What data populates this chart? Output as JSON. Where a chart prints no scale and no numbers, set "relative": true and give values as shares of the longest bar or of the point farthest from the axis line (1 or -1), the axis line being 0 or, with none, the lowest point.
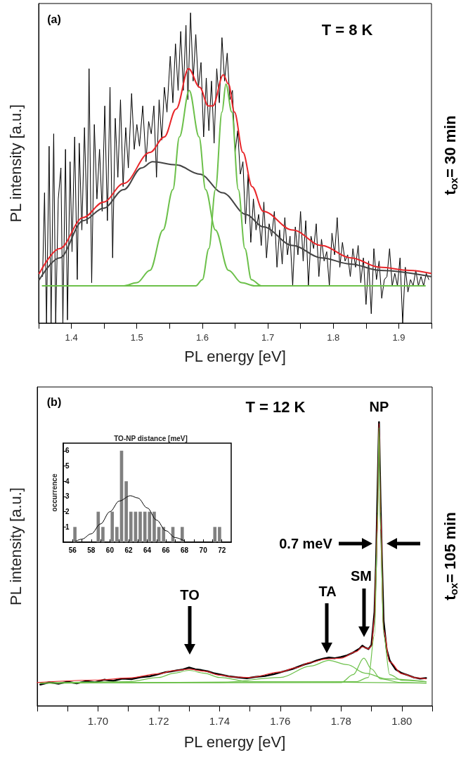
{
  "chart_data": [
    {
      "type": "line",
      "relative": true,
      "xlabel": "PL energy [eV]",
      "ylabel": "PL intensity [a.u.]",
      "xlim": [
        1.35,
        1.95
      ],
      "xticks": [
        {
          "value": 1.35,
          "label": null
        },
        1.4,
        {
          "value": 1.45,
          "label": null
        },
        1.5,
        {
          "value": 1.55,
          "label": null
        },
        1.6,
        {
          "value": 1.65,
          "label": null
        },
        1.7,
        {
          "value": 1.75,
          "label": null
        },
        1.8,
        {
          "value": 1.85,
          "label": null
        },
        1.9,
        {
          "value": 1.95,
          "label": null
        }
      ],
      "annotations": [
        "(a)",
        "T = 8 K",
        "t$_{ox}$= 30 min"
      ],
      "series": [
        {
          "color": "#000000",
          "x": [
            1.356,
            1.359,
            1.362,
            1.366,
            1.369,
            1.373,
            1.376,
            1.38,
            1.384,
            1.387,
            1.391,
            1.394,
            1.398,
            1.401,
            1.405,
            1.409,
            1.412,
            1.416,
            1.42,
            1.424,
            1.427,
            1.431,
            1.435,
            1.439,
            1.443,
            1.447,
            1.451,
            1.455,
            1.459,
            1.463,
            1.467,
            1.471,
            1.475,
            1.479,
            1.483,
            1.487,
            1.492,
            1.496,
            1.5,
            1.504,
            1.509,
            1.514,
            1.518,
            1.522,
            1.526,
            1.53,
            1.534,
            1.538,
            1.542,
            1.546,
            1.551,
            1.555,
            1.559,
            1.563,
            1.567,
            1.571,
            1.575,
            1.578,
            1.582,
            1.586,
            1.59,
            1.594,
            1.598,
            1.602,
            1.606,
            1.61,
            1.614,
            1.618,
            1.622,
            1.626,
            1.63,
            1.634,
            1.638,
            1.642,
            1.646,
            1.65,
            1.654,
            1.658,
            1.662,
            1.666,
            1.67,
            1.674,
            1.678,
            1.682,
            1.686,
            1.69,
            1.694,
            1.698,
            1.702,
            1.706,
            1.71,
            1.714,
            1.718,
            1.722,
            1.726,
            1.73,
            1.734,
            1.738,
            1.742,
            1.746,
            1.75,
            1.754,
            1.758,
            1.762,
            1.766,
            1.77,
            1.774,
            1.778,
            1.782,
            1.786,
            1.79,
            1.794,
            1.798,
            1.802,
            1.806,
            1.81,
            1.814,
            1.818,
            1.822,
            1.826,
            1.83,
            1.834,
            1.838,
            1.842,
            1.846,
            1.85,
            1.854,
            1.858,
            1.862,
            1.866,
            1.87,
            1.874,
            1.878,
            1.882,
            1.886,
            1.89,
            1.894,
            1.898,
            1.902,
            1.906,
            1.91,
            1.914,
            1.918,
            1.922,
            1.926,
            1.93,
            1.934,
            1.938,
            1.942,
            1.946
          ],
          "values": [
            0.15,
            0.42,
            0,
            0.57,
            0,
            0.61,
            0,
            0.4,
            0.5,
            0,
            0.56,
            0.01,
            0.52,
            0.23,
            0.6,
            0.14,
            0.58,
            0.3,
            0.63,
            0.32,
            0.82,
            0.13,
            0.64,
            0.4,
            0.56,
            0.36,
            0.7,
            0.33,
            0.76,
            0.21,
            0.66,
            0.47,
            0.72,
            0.44,
            0.63,
            0.5,
            0.74,
            0.56,
            0.64,
            0.57,
            0.7,
            0.52,
            0.65,
            0.61,
            0.7,
            0.47,
            0.72,
            0.59,
            0.76,
            0.68,
            0.86,
            0.71,
            0.9,
            0.75,
            0.94,
            0.75,
            0.96,
            0.72,
            1,
            0.78,
            0.93,
            0.76,
            0.84,
            0.6,
            0.79,
            0.62,
            0.78,
            0.58,
            0.82,
            0.71,
            0.92,
            0.78,
            0.87,
            0.72,
            0.75,
            0.55,
            0.62,
            0.48,
            0.52,
            0.32,
            0.48,
            0.26,
            0.4,
            0.3,
            0.35,
            0.25,
            0.39,
            0.21,
            0.32,
            0.28,
            0.36,
            0.18,
            0.3,
            0.19,
            0.34,
            0.22,
            0.28,
            0.12,
            0.31,
            0.22,
            0.36,
            0.2,
            0.33,
            0.12,
            0.28,
            0.24,
            0.32,
            0.15,
            0.27,
            0.2,
            0.23,
            0.12,
            0.29,
            0.22,
            0.34,
            0.18,
            0.26,
            0.2,
            0.22,
            0.15,
            0.24,
            0.18,
            0.25,
            0.13,
            0.21,
            0.06,
            0.2,
            0.03,
            0.24,
            0.14,
            0.2,
            0.08,
            0.14,
            0.15,
            0.24,
            0.12,
            0.16,
            0.12,
            0.21,
            0,
            0.18,
            0.1,
            0.14,
            0.12,
            0.17,
            0.12,
            0.15,
            0.12,
            0.16,
            0.14
          ]
        },
        {
          "color": "#444444",
          "x": [
            1.351,
            1.382,
            1.418,
            1.449,
            1.48,
            1.507,
            1.524,
            1.56,
            1.596,
            1.631,
            1.667,
            1.693,
            1.738,
            1.782,
            1.827,
            1.871,
            1.949
          ],
          "values": [
            0.14,
            0.21,
            0.33,
            0.37,
            0.43,
            0.5,
            0.52,
            0.51,
            0.48,
            0.42,
            0.35,
            0.31,
            0.25,
            0.21,
            0.19,
            0.17,
            0.15
          ]
        },
        {
          "color": "#e8262a",
          "x": [
            1.351,
            1.382,
            1.418,
            1.449,
            1.48,
            1.52,
            1.542,
            1.56,
            1.579,
            1.596,
            1.609,
            1.616,
            1.632,
            1.64,
            1.649,
            1.662,
            1.676,
            1.693,
            1.738,
            1.782,
            1.827,
            1.871,
            1.916,
            1.949
          ],
          "values": [
            0.16,
            0.24,
            0.34,
            0.39,
            0.45,
            0.55,
            0.6,
            0.69,
            0.82,
            0.76,
            0.7,
            0.7,
            0.8,
            0.77,
            0.68,
            0.55,
            0.44,
            0.36,
            0.3,
            0.25,
            0.21,
            0.18,
            0.17,
            0.16
          ]
        },
        {
          "color": "#6cc04a",
          "x": [
            1.356,
            1.48,
            1.5,
            1.52,
            1.54,
            1.555,
            1.565,
            1.58,
            1.595,
            1.605,
            1.62,
            1.64,
            1.66,
            1.68,
            1.94
          ],
          "values": [
            0.12,
            0.12,
            0.13,
            0.17,
            0.3,
            0.43,
            0.6,
            0.75,
            0.6,
            0.43,
            0.3,
            0.17,
            0.13,
            0.12,
            0.12
          ]
        },
        {
          "color": "#6cc04a",
          "x": [
            1.356,
            1.59,
            1.6,
            1.61,
            1.62,
            1.63,
            1.636,
            1.645,
            1.655,
            1.665,
            1.675,
            1.69,
            1.94
          ],
          "values": [
            0.12,
            0.12,
            0.14,
            0.24,
            0.43,
            0.68,
            0.77,
            0.68,
            0.43,
            0.24,
            0.14,
            0.12,
            0.12
          ]
        }
      ]
    },
    {
      "type": "line",
      "relative": true,
      "xlabel": "PL energy [eV]",
      "ylabel": "PL intensity [a.u.]",
      "xlim": [
        1.68,
        1.81
      ],
      "xticks": [
        {
          "value": 1.68,
          "label": null
        },
        {
          "value": 1.69,
          "label": null
        },
        {
          "value": 1.7,
          "label": "1.70"
        },
        {
          "value": 1.71,
          "label": null
        },
        1.72,
        {
          "value": 1.73,
          "label": null
        },
        1.74,
        {
          "value": 1.75,
          "label": null
        },
        1.76,
        {
          "value": 1.77,
          "label": null
        },
        1.78,
        {
          "value": 1.79,
          "label": null
        },
        {
          "value": 1.8,
          "label": "1.80"
        },
        {
          "value": 1.81,
          "label": null
        }
      ],
      "annotations": [
        "(b)",
        "T = 12 K",
        {
          "text": "NP",
          "x": 1.7925,
          "y": 1
        },
        "0.7 meV",
        "SM",
        "TA",
        "TO",
        "t$_{ox}$= 105 min"
      ],
      "series": [
        {
          "color": "#000000",
          "x": [
            1.681,
            1.684,
            1.687,
            1.69,
            1.693,
            1.696,
            1.699,
            1.702,
            1.705,
            1.708,
            1.711,
            1.714,
            1.717,
            1.72,
            1.722,
            1.724,
            1.726,
            1.728,
            1.73,
            1.732,
            1.734,
            1.736,
            1.738,
            1.74,
            1.743,
            1.746,
            1.749,
            1.752,
            1.755,
            1.758,
            1.761,
            1.764,
            1.766,
            1.768,
            1.77,
            1.772,
            1.774,
            1.776,
            1.778,
            1.78,
            1.782,
            1.784,
            1.786,
            1.787,
            1.788,
            1.789,
            1.79,
            1.791,
            1.7915,
            1.792,
            1.7925,
            1.793,
            1.7935,
            1.794,
            1.795,
            1.796,
            1.798,
            1.8,
            1.802,
            1.804,
            1.806,
            1.808
          ],
          "values": [
            0.075,
            0.083,
            0.078,
            0.085,
            0.079,
            0.087,
            0.083,
            0.092,
            0.088,
            0.096,
            0.094,
            0.101,
            0.104,
            0.112,
            0.118,
            0.121,
            0.125,
            0.128,
            0.135,
            0.129,
            0.126,
            0.122,
            0.115,
            0.111,
            0.104,
            0.1,
            0.097,
            0.102,
            0.105,
            0.112,
            0.121,
            0.13,
            0.138,
            0.146,
            0.152,
            0.16,
            0.166,
            0.17,
            0.168,
            0.172,
            0.178,
            0.188,
            0.201,
            0.212,
            0.205,
            0.2,
            0.214,
            0.33,
            0.5,
            0.75,
            1,
            0.72,
            0.5,
            0.3,
            0.2,
            0.16,
            0.128,
            0.115,
            0.108,
            0.1,
            0.096,
            0.098
          ]
        },
        {
          "color": "#e8262a",
          "x": [
            1.68,
            1.7,
            1.71,
            1.72,
            1.725,
            1.73,
            1.735,
            1.74,
            1.745,
            1.75,
            1.76,
            1.765,
            1.77,
            1.775,
            1.78,
            1.785,
            1.787,
            1.789,
            1.79,
            1.791,
            1.7915,
            1.792,
            1.7925,
            1.793,
            1.794,
            1.796,
            1.8,
            1.805,
            1.808
          ],
          "values": [
            0.082,
            0.091,
            0.098,
            0.113,
            0.124,
            0.129,
            0.122,
            0.108,
            0.101,
            0.1,
            0.119,
            0.134,
            0.153,
            0.165,
            0.168,
            0.191,
            0.208,
            0.201,
            0.211,
            0.309,
            0.48,
            0.68,
            0.995,
            0.68,
            0.268,
            0.155,
            0.113,
            0.098,
            0.095
          ]
        },
        {
          "color": "#6cc04a",
          "x": [
            1.681,
            1.71,
            1.72,
            1.725,
            1.73,
            1.735,
            1.74,
            1.75,
            1.808
          ],
          "values": [
            0.08,
            0.085,
            0.1,
            0.115,
            0.125,
            0.115,
            0.1,
            0.085,
            0.08
          ]
        },
        {
          "color": "#6cc04a",
          "x": [
            1.681,
            1.74,
            1.76,
            1.77,
            1.776,
            1.782,
            1.788,
            1.795,
            1.808
          ],
          "values": [
            0.08,
            0.082,
            0.1,
            0.14,
            0.16,
            0.145,
            0.115,
            0.095,
            0.085
          ]
        },
        {
          "color": "#6cc04a",
          "x": [
            1.681,
            1.78,
            1.784,
            1.7875,
            1.79,
            1.793,
            1.8,
            1.808
          ],
          "values": [
            0.08,
            0.082,
            0.11,
            0.168,
            0.13,
            0.095,
            0.082,
            0.08
          ]
        },
        {
          "color": "#6cc04a",
          "x": [
            1.681,
            1.785,
            1.789,
            1.791,
            1.792,
            1.7925,
            1.793,
            1.794,
            1.796,
            1.8,
            1.808
          ],
          "values": [
            0.08,
            0.085,
            0.1,
            0.25,
            0.62,
            0.98,
            0.62,
            0.25,
            0.11,
            0.09,
            0.085
          ]
        }
      ]
    },
    {
      "type": "histogram",
      "title": "TO-NP distance [meV]",
      "ylabel": "occurrence",
      "color": "#808080",
      "bins": [
        56,
        56.5,
        57,
        57.5,
        58,
        58.5,
        59,
        59.5,
        60,
        60.5,
        61,
        61.5,
        62,
        62.5,
        63,
        63.5,
        64,
        64.5,
        65,
        65.5,
        66,
        66.5,
        67,
        67.5,
        68,
        68.5,
        69,
        69.5,
        70,
        70.5,
        71,
        71.5,
        72
      ],
      "values": [
        1,
        0,
        0,
        0,
        0,
        2,
        1,
        0,
        2,
        1,
        6,
        4,
        2,
        2,
        2,
        2,
        2,
        2,
        1,
        1,
        0,
        1,
        0,
        1,
        0,
        0,
        0,
        0,
        0,
        0,
        1,
        1
      ],
      "xlim": [
        55,
        73
      ],
      "xticks": [
        56,
        {
          "value": 57,
          "label": null
        },
        58,
        {
          "value": 59,
          "label": null
        },
        60,
        {
          "value": 61,
          "label": null
        },
        62,
        {
          "value": 63,
          "label": null
        },
        64,
        {
          "value": 65,
          "label": null
        },
        66,
        {
          "value": 67,
          "label": null
        },
        68,
        {
          "value": 69,
          "label": null
        },
        70,
        {
          "value": 71,
          "label": null
        },
        72
      ],
      "ylim": [
        0,
        6.5
      ],
      "yticks": [
        1,
        2,
        3,
        4,
        5,
        6
      ],
      "series": [
        {
          "type": "line",
          "color": "#000000",
          "x": [
            56.3,
            57,
            58,
            59,
            60,
            61,
            62.2,
            63,
            64,
            65,
            66,
            67,
            68
          ],
          "values": [
            0.05,
            0.2,
            0.55,
            1.2,
            2,
            2.7,
            3.05,
            2.9,
            2.25,
            1.45,
            0.75,
            0.3,
            0.08
          ]
        }
      ]
    }
  ]
}
